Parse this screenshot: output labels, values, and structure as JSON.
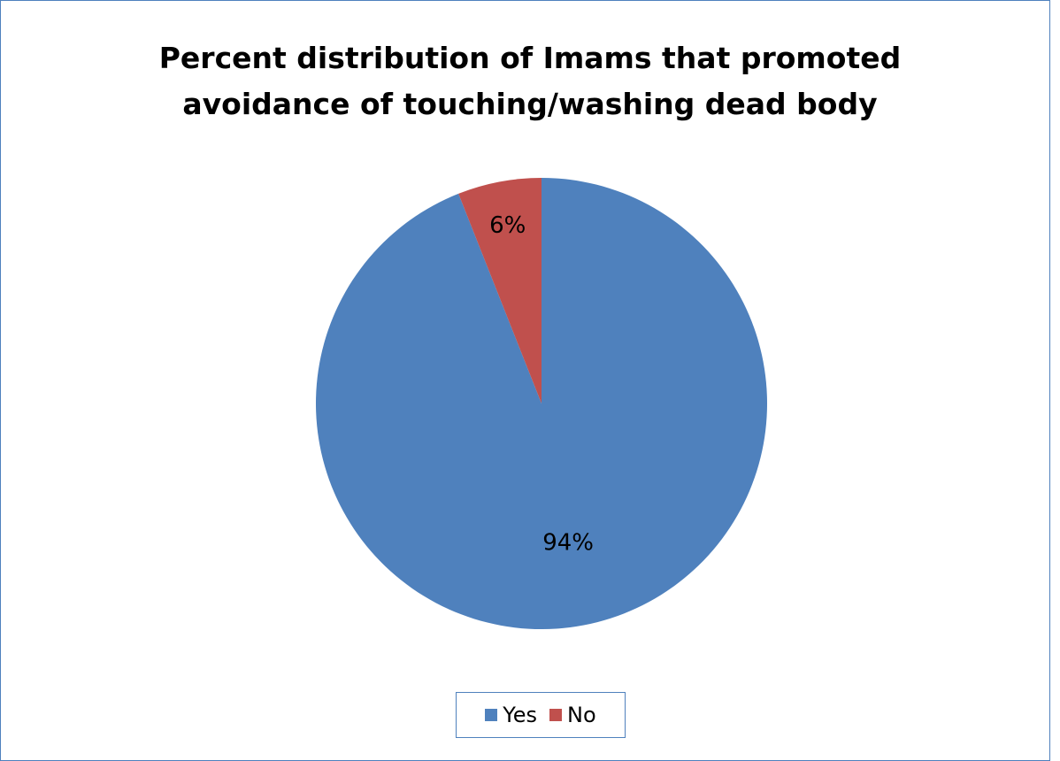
{
  "chart_data": {
    "type": "pie",
    "title_lines": [
      "Percent distribution of Imams that promoted",
      "avoidance of touching/washing dead body"
    ],
    "slices": [
      {
        "name": "Yes",
        "value": 94,
        "label": "94%",
        "color": "#4f81bd"
      },
      {
        "name": "No",
        "value": 6,
        "label": "6%",
        "color": "#c0504d"
      }
    ],
    "legend_placement": "bottom"
  }
}
